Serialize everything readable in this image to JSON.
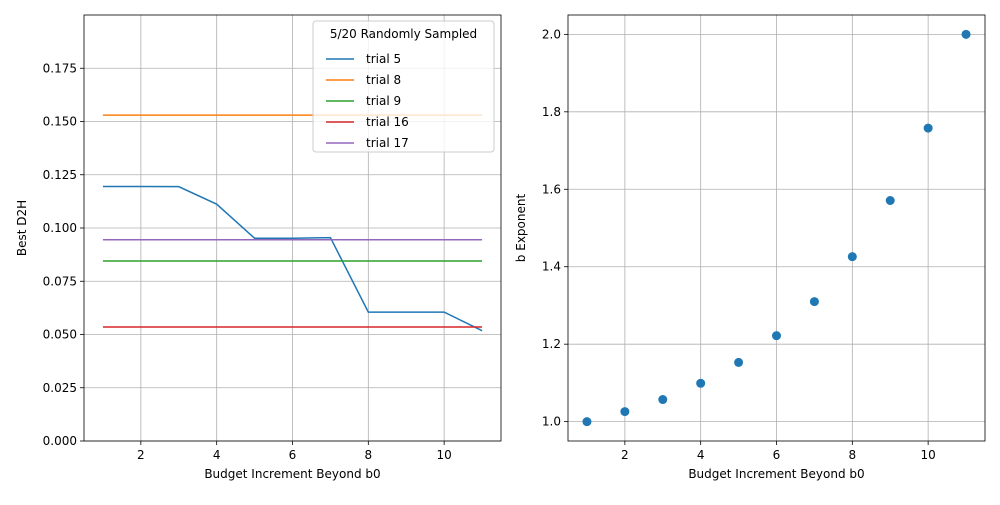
{
  "chart_data": [
    {
      "type": "line",
      "xlabel": "Budget Increment Beyond b0",
      "ylabel": "Best D2H",
      "xlim": [
        0.5,
        11.5
      ],
      "ylim": [
        0.0,
        0.2
      ],
      "xticks": [
        2,
        4,
        6,
        8,
        10
      ],
      "yticks": [
        0.0,
        0.025,
        0.05,
        0.075,
        0.1,
        0.125,
        0.15,
        0.175
      ],
      "ytick_labels": [
        "0.000",
        "0.025",
        "0.050",
        "0.075",
        "0.100",
        "0.125",
        "0.150",
        "0.175"
      ],
      "grid": true,
      "legend": {
        "title": "5/20 Randomly Sampled",
        "placement": "top-right"
      },
      "x": [
        1,
        2,
        3,
        4,
        5,
        6,
        7,
        8,
        9,
        10,
        11
      ],
      "series": [
        {
          "name": "trial 5",
          "color": "#1f77b4",
          "values": [
            0.1195,
            0.1195,
            0.1194,
            0.1112,
            0.0952,
            0.0952,
            0.0955,
            0.0605,
            0.0605,
            0.0605,
            0.0518
          ]
        },
        {
          "name": "trial 8",
          "color": "#ff7f0e",
          "values": [
            0.153,
            0.153,
            0.153,
            0.153,
            0.153,
            0.153,
            0.153,
            0.153,
            0.153,
            0.153,
            0.153
          ]
        },
        {
          "name": "trial 9",
          "color": "#2ca02c",
          "values": [
            0.0845,
            0.0845,
            0.0845,
            0.0845,
            0.0845,
            0.0845,
            0.0845,
            0.0845,
            0.0845,
            0.0845,
            0.0845
          ]
        },
        {
          "name": "trial 16",
          "color": "#d62728",
          "values": [
            0.0535,
            0.0535,
            0.0535,
            0.0535,
            0.0535,
            0.0535,
            0.0535,
            0.0535,
            0.0535,
            0.0535,
            0.0535
          ]
        },
        {
          "name": "trial 17",
          "color": "#9467bd",
          "values": [
            0.0945,
            0.0945,
            0.0945,
            0.0945,
            0.0945,
            0.0945,
            0.0945,
            0.0945,
            0.0945,
            0.0945,
            0.0945
          ]
        }
      ]
    },
    {
      "type": "scatter",
      "xlabel": "Budget Increment Beyond b0",
      "ylabel": "b Exponent",
      "xlim": [
        0.5,
        11.5
      ],
      "ylim": [
        0.95,
        2.05
      ],
      "xticks": [
        2,
        4,
        6,
        8,
        10
      ],
      "yticks": [
        1.0,
        1.2,
        1.4,
        1.6,
        1.8,
        2.0
      ],
      "ytick_labels": [
        "1.0",
        "1.2",
        "1.4",
        "1.6",
        "1.8",
        "2.0"
      ],
      "grid": true,
      "color": "#1f77b4",
      "x": [
        1,
        2,
        3,
        4,
        5,
        6,
        7,
        8,
        9,
        10,
        11
      ],
      "y": [
        1.0,
        1.026,
        1.057,
        1.099,
        1.153,
        1.222,
        1.31,
        1.426,
        1.571,
        1.758,
        2.0
      ]
    }
  ]
}
